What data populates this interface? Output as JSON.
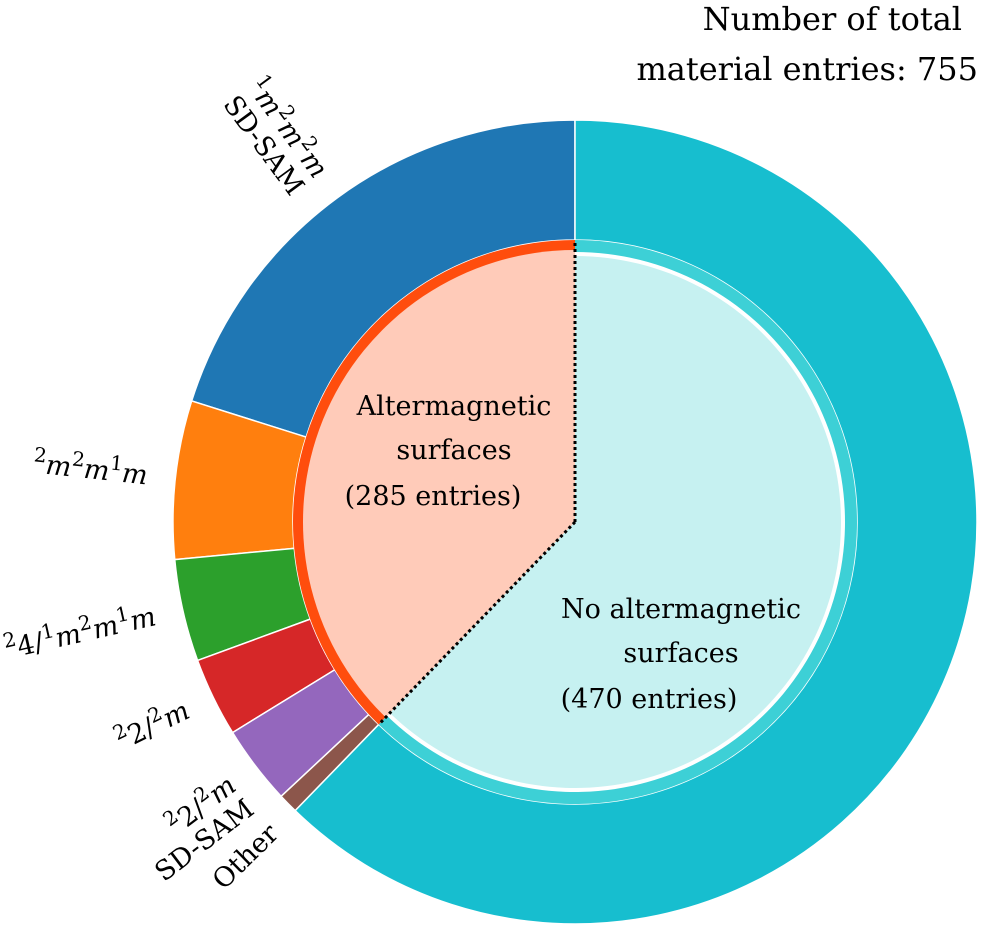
{
  "chart_data": {
    "type": "pie",
    "title_lines": [
      "Number of total",
      "material entries: 755"
    ],
    "total_entries": 755,
    "inner_ring": [
      {
        "name": "Altermagnetic surfaces",
        "label_lines": [
          "Altermagnetic",
          "surfaces",
          "(285 entries)"
        ],
        "value": 285,
        "color": "#ffcbb9",
        "edge_color": "#ff4d0d"
      },
      {
        "name": "No altermagnetic surfaces",
        "label_lines": [
          "No altermagnetic",
          "surfaces",
          "(470 entries)"
        ],
        "value": 470,
        "color": "#c6f1f1",
        "edge_color": "#3dd0d6"
      }
    ],
    "outer_ring": [
      {
        "group": "altermagnetic",
        "label_parts": [
          [
            "sup",
            "1"
          ],
          [
            "m",
            "m"
          ],
          [
            "sup",
            "2"
          ],
          [
            "m",
            "m"
          ],
          [
            "sup",
            "2"
          ],
          [
            "m",
            "m"
          ]
        ],
        "label_line2": "SD-SAM",
        "value": 152,
        "color": "#1f77b4"
      },
      {
        "group": "altermagnetic",
        "label_parts": [
          [
            "sup",
            "2"
          ],
          [
            "m",
            "m"
          ],
          [
            "sup",
            "2"
          ],
          [
            "m",
            "m"
          ],
          [
            "sup",
            "1"
          ],
          [
            "m",
            "m"
          ]
        ],
        "label_line2": "",
        "value": 48,
        "color": "#ff7f0e"
      },
      {
        "group": "altermagnetic",
        "label_parts": [
          [
            "sup",
            "2"
          ],
          [
            "n",
            "4/"
          ],
          [
            "sup",
            "1"
          ],
          [
            "m",
            "m"
          ],
          [
            "sup",
            "2"
          ],
          [
            "m",
            "m"
          ],
          [
            "sup",
            "1"
          ],
          [
            "m",
            "m"
          ]
        ],
        "label_line2": "",
        "value": 31,
        "color": "#2ca02c"
      },
      {
        "group": "altermagnetic",
        "label_parts": [
          [
            "sup",
            "2"
          ],
          [
            "n",
            "2/"
          ],
          [
            "sup",
            "2"
          ],
          [
            "m",
            "m"
          ]
        ],
        "label_line2": "",
        "value": 24,
        "color": "#d62728"
      },
      {
        "group": "altermagnetic",
        "label_parts": [
          [
            "sup",
            "2"
          ],
          [
            "n",
            "2/"
          ],
          [
            "sup",
            "2"
          ],
          [
            "m",
            "m"
          ]
        ],
        "label_line2": "SD-SAM",
        "value": 24,
        "color": "#9467bd"
      },
      {
        "group": "altermagnetic",
        "label_parts": [
          [
            "n",
            "Other"
          ]
        ],
        "label_line2": "",
        "value": 6,
        "color": "#8c564b"
      },
      {
        "group": "none",
        "label_parts": [],
        "label_line2": "",
        "value": 470,
        "color": "#17becf"
      }
    ]
  }
}
